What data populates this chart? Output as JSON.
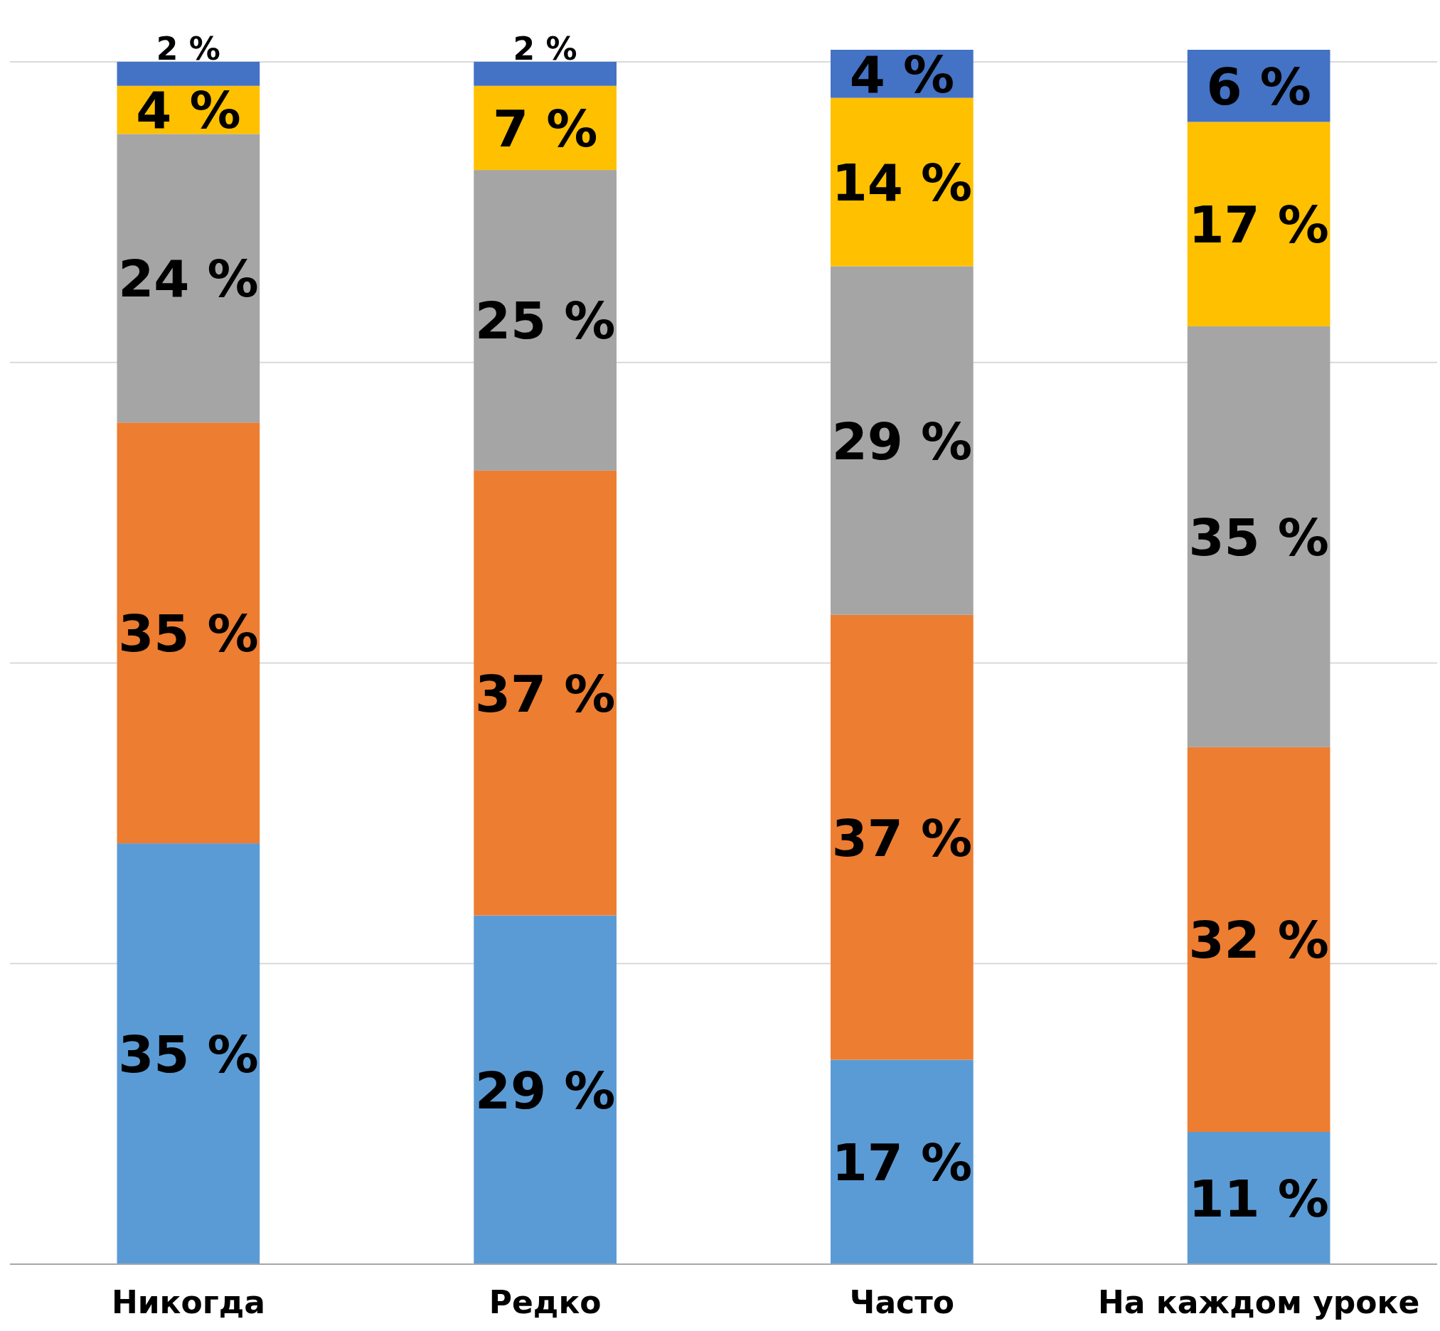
{
  "chart_data": {
    "type": "bar",
    "stacked": true,
    "categories": [
      "Никогда",
      "Редко",
      "Часто",
      "На каждом уроке"
    ],
    "series": [
      {
        "color": "#5b9bd5",
        "values": [
          35,
          29,
          17,
          11
        ],
        "value_labels": [
          "35 %",
          "29 %",
          "17 %",
          "11 %"
        ]
      },
      {
        "color": "#ed7d31",
        "values": [
          35,
          37,
          37,
          32
        ],
        "value_labels": [
          "35 %",
          "37 %",
          "37 %",
          "32 %"
        ]
      },
      {
        "color": "#a5a5a5",
        "values": [
          24,
          25,
          29,
          35
        ],
        "value_labels": [
          "24 %",
          "25 %",
          "29 %",
          "35 %"
        ]
      },
      {
        "color": "#ffc000",
        "values": [
          4,
          7,
          14,
          17
        ],
        "value_labels": [
          "4 %",
          "7 %",
          "14 %",
          "17 %"
        ]
      },
      {
        "color": "#4472c4",
        "values": [
          2,
          2,
          4,
          6
        ],
        "value_labels": [
          "2 %",
          "2 %",
          "4 %",
          "6 %"
        ]
      }
    ],
    "ylim": [
      0,
      101
    ],
    "yticks": [
      {
        "value": 0,
        "label": null
      },
      {
        "value": 25,
        "label": null
      },
      {
        "value": 50,
        "label": null
      },
      {
        "value": 75,
        "label": null
      },
      {
        "value": 100,
        "label": null
      }
    ],
    "grid": "y",
    "tick_labels": "x"
  }
}
